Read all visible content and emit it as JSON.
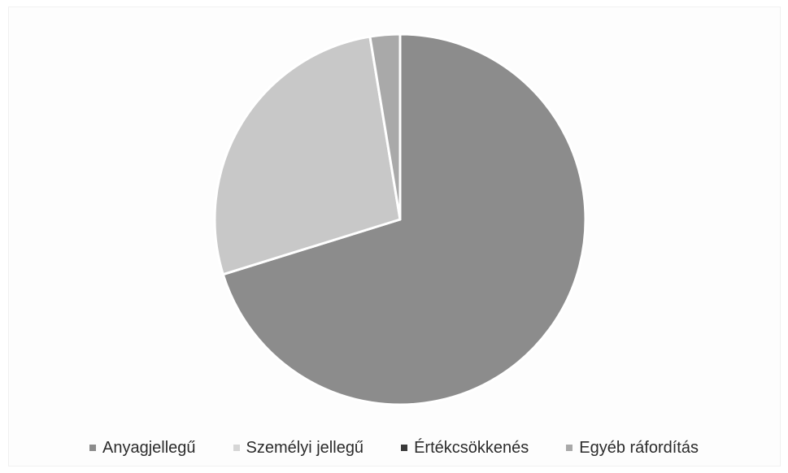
{
  "chart_data": {
    "type": "pie",
    "title": "",
    "series": [
      {
        "values": [
          70.2,
          27.2,
          0,
          2.6
        ]
      }
    ],
    "categories": [
      "Anyagjellegű",
      "Személyi jellegű",
      "Értékcsökkenés",
      "Egyéb ráfordítás"
    ],
    "colors": [
      "#8c8c8c",
      "#c8c8c8",
      "#3a3a3a",
      "#a9a9a9"
    ],
    "legend": {
      "position": "bottom",
      "items": [
        "Anyagjellegű",
        "Személyi jellegű",
        "Értékcsökkenés",
        "Egyéb ráfordítás"
      ]
    }
  }
}
